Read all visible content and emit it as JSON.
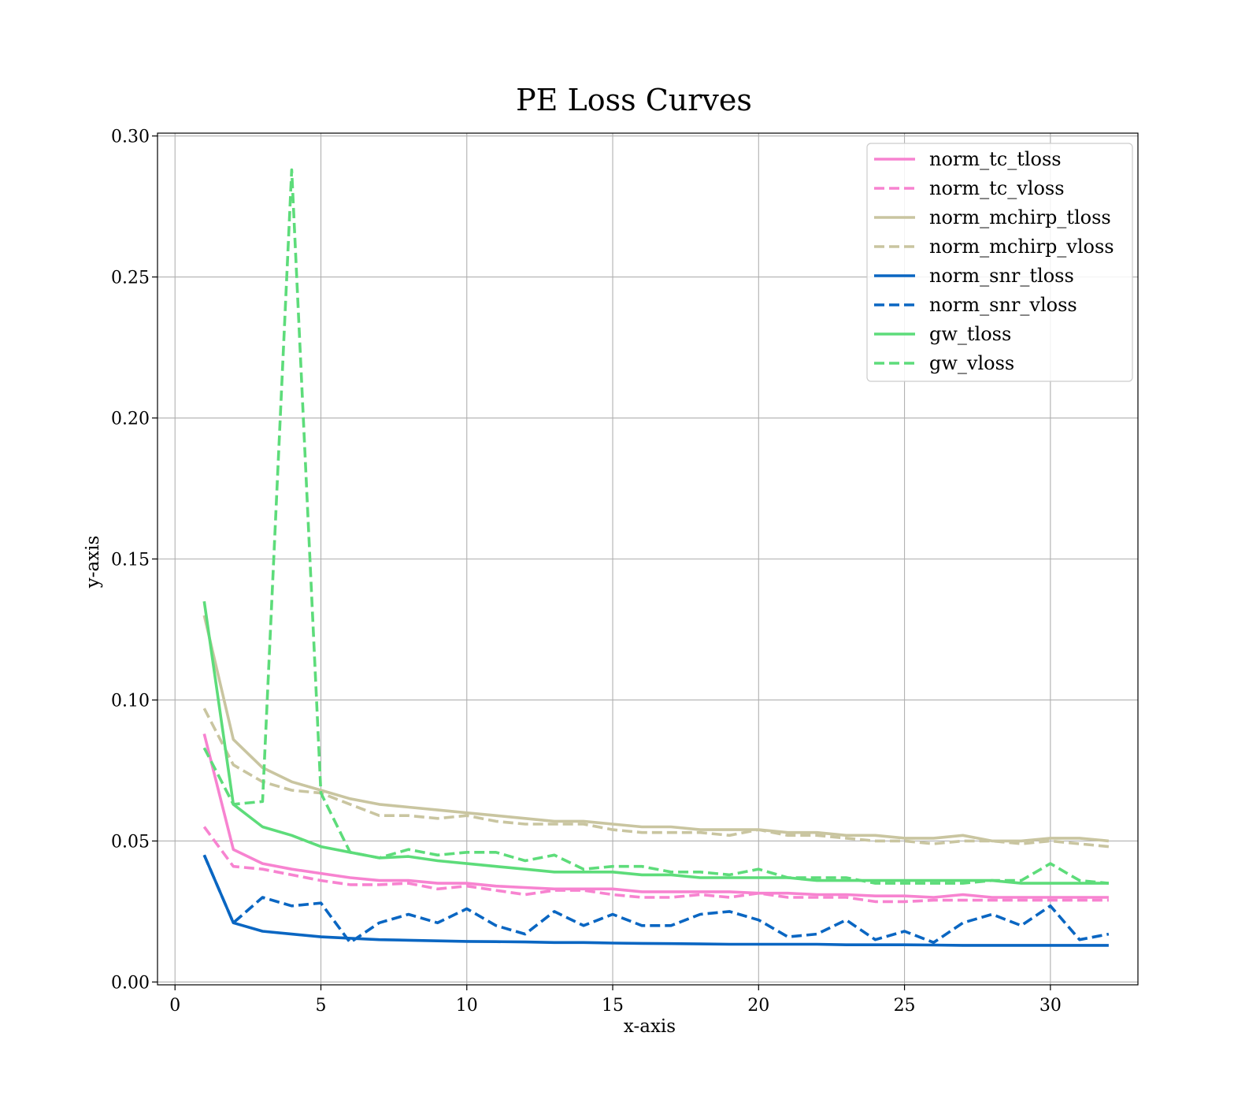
{
  "chart_data": {
    "type": "line",
    "title": "PE Loss Curves",
    "xlabel": "x-axis",
    "ylabel": "y-axis",
    "xlim": [
      -0.6,
      33.0
    ],
    "ylim": [
      -0.001,
      0.301
    ],
    "xticks": [
      0,
      5,
      10,
      15,
      20,
      25,
      30
    ],
    "yticks": [
      0.0,
      0.05,
      0.1,
      0.15,
      0.2,
      0.25,
      0.3
    ],
    "xtick_labels": [
      "0",
      "5",
      "10",
      "15",
      "20",
      "25",
      "30"
    ],
    "ytick_labels": [
      "0.00",
      "0.05",
      "0.10",
      "0.15",
      "0.20",
      "0.25",
      "0.30"
    ],
    "grid": true,
    "legend_position": "top-right",
    "x": [
      1,
      2,
      3,
      4,
      5,
      6,
      7,
      8,
      9,
      10,
      11,
      12,
      13,
      14,
      15,
      16,
      17,
      18,
      19,
      20,
      21,
      22,
      23,
      24,
      25,
      26,
      27,
      28,
      29,
      30,
      31,
      32
    ],
    "series": [
      {
        "name": "norm_tc_tloss",
        "color": "#f783d0",
        "dash": "solid",
        "values": [
          0.088,
          0.047,
          0.042,
          0.04,
          0.0385,
          0.037,
          0.036,
          0.036,
          0.035,
          0.035,
          0.034,
          0.0335,
          0.033,
          0.033,
          0.033,
          0.032,
          0.032,
          0.032,
          0.032,
          0.0315,
          0.0315,
          0.031,
          0.031,
          0.0305,
          0.0305,
          0.03,
          0.031,
          0.03,
          0.03,
          0.03,
          0.03,
          0.03
        ]
      },
      {
        "name": "norm_tc_vloss",
        "color": "#f783d0",
        "dash": "dashed",
        "values": [
          0.055,
          0.041,
          0.04,
          0.038,
          0.036,
          0.0345,
          0.0345,
          0.035,
          0.033,
          0.034,
          0.0325,
          0.031,
          0.0325,
          0.0325,
          0.031,
          0.03,
          0.03,
          0.031,
          0.03,
          0.0315,
          0.03,
          0.03,
          0.03,
          0.0285,
          0.0285,
          0.029,
          0.029,
          0.029,
          0.029,
          0.029,
          0.029,
          0.029
        ]
      },
      {
        "name": "norm_mchirp_tloss",
        "color": "#c9c5a0",
        "dash": "solid",
        "values": [
          0.13,
          0.086,
          0.076,
          0.071,
          0.068,
          0.065,
          0.063,
          0.062,
          0.061,
          0.06,
          0.059,
          0.058,
          0.057,
          0.057,
          0.056,
          0.055,
          0.055,
          0.054,
          0.054,
          0.054,
          0.053,
          0.053,
          0.052,
          0.052,
          0.051,
          0.051,
          0.052,
          0.05,
          0.05,
          0.051,
          0.051,
          0.05
        ]
      },
      {
        "name": "norm_mchirp_vloss",
        "color": "#c9c5a0",
        "dash": "dashed",
        "values": [
          0.097,
          0.077,
          0.071,
          0.068,
          0.067,
          0.063,
          0.059,
          0.059,
          0.058,
          0.059,
          0.057,
          0.056,
          0.056,
          0.056,
          0.054,
          0.053,
          0.053,
          0.053,
          0.052,
          0.054,
          0.052,
          0.052,
          0.051,
          0.05,
          0.05,
          0.049,
          0.05,
          0.05,
          0.049,
          0.05,
          0.049,
          0.048
        ]
      },
      {
        "name": "norm_snr_tloss",
        "color": "#0a66c2",
        "dash": "solid",
        "values": [
          0.045,
          0.021,
          0.018,
          0.017,
          0.016,
          0.0155,
          0.015,
          0.0148,
          0.0146,
          0.0144,
          0.0143,
          0.0142,
          0.014,
          0.014,
          0.0138,
          0.0137,
          0.0136,
          0.0135,
          0.0134,
          0.0134,
          0.0134,
          0.0134,
          0.0132,
          0.0132,
          0.0132,
          0.0131,
          0.013,
          0.013,
          0.013,
          0.013,
          0.013,
          0.013
        ]
      },
      {
        "name": "norm_snr_vloss",
        "color": "#0a66c2",
        "dash": "dashed",
        "values": [
          0.045,
          0.021,
          0.03,
          0.027,
          0.028,
          0.014,
          0.021,
          0.024,
          0.021,
          0.026,
          0.02,
          0.017,
          0.025,
          0.02,
          0.024,
          0.02,
          0.02,
          0.024,
          0.025,
          0.022,
          0.016,
          0.017,
          0.022,
          0.015,
          0.018,
          0.014,
          0.021,
          0.024,
          0.02,
          0.027,
          0.015,
          0.017
        ]
      },
      {
        "name": "gw_tloss",
        "color": "#5ddc7a",
        "dash": "solid",
        "values": [
          0.135,
          0.063,
          0.055,
          0.052,
          0.048,
          0.046,
          0.044,
          0.0445,
          0.043,
          0.042,
          0.041,
          0.04,
          0.039,
          0.039,
          0.039,
          0.038,
          0.038,
          0.037,
          0.037,
          0.037,
          0.037,
          0.036,
          0.036,
          0.036,
          0.036,
          0.036,
          0.036,
          0.036,
          0.035,
          0.035,
          0.035,
          0.035
        ]
      },
      {
        "name": "gw_vloss",
        "color": "#5ddc7a",
        "dash": "dashed",
        "values": [
          0.083,
          0.063,
          0.064,
          0.288,
          0.067,
          0.046,
          0.044,
          0.047,
          0.045,
          0.046,
          0.046,
          0.043,
          0.045,
          0.04,
          0.041,
          0.041,
          0.039,
          0.039,
          0.038,
          0.04,
          0.037,
          0.037,
          0.037,
          0.035,
          0.035,
          0.035,
          0.035,
          0.036,
          0.036,
          0.042,
          0.036,
          0.035
        ]
      }
    ]
  }
}
